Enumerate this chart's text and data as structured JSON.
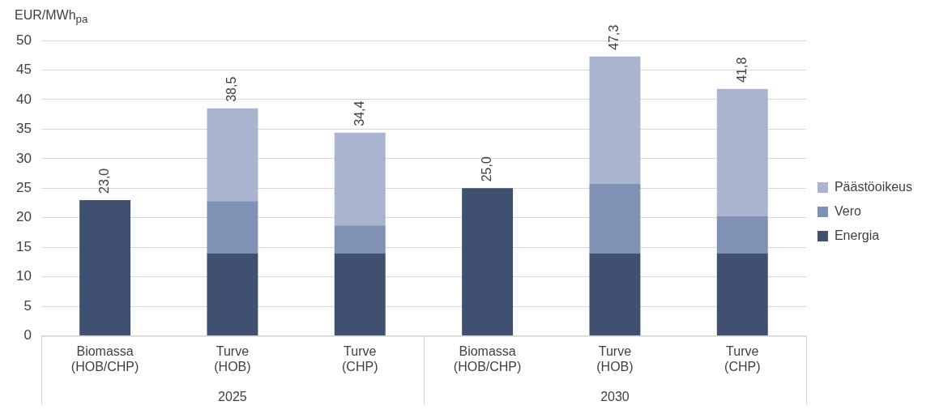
{
  "chart_data": {
    "type": "bar",
    "stacked": true,
    "ylabel": "EUR/MWh$_{pa}$",
    "categories": [
      "Biomassa\n(HOB/CHP)",
      "Turve\n(HOB)",
      "Turve\n(CHP)",
      "Biomassa\n(HOB/CHP)",
      "Turve\n(HOB)",
      "Turve\n(CHP)"
    ],
    "series": [
      {
        "name": "Energia",
        "color": "#3f5070",
        "values": [
          23.0,
          14,
          14,
          25.0,
          14,
          14
        ]
      },
      {
        "name": "Vero",
        "color": "#7f91b4",
        "values": [
          null,
          8.8,
          4.7,
          null,
          11.8,
          6.3
        ]
      },
      {
        "name": "Päästöoikeus",
        "color": "#a9b5ce",
        "values": [
          null,
          15.7,
          15.7,
          null,
          21.5,
          21.5
        ]
      }
    ],
    "totals": [
      "23,0",
      "38,5",
      "34,4",
      "25,0",
      "47,3",
      "41,8"
    ],
    "annotations": [
      "2025",
      "2030"
    ],
    "ylim": [
      0,
      50
    ],
    "yticks": [
      0,
      5,
      10,
      15,
      20,
      25,
      30,
      35,
      40,
      45,
      50
    ],
    "grid": "y",
    "legend": "right"
  }
}
